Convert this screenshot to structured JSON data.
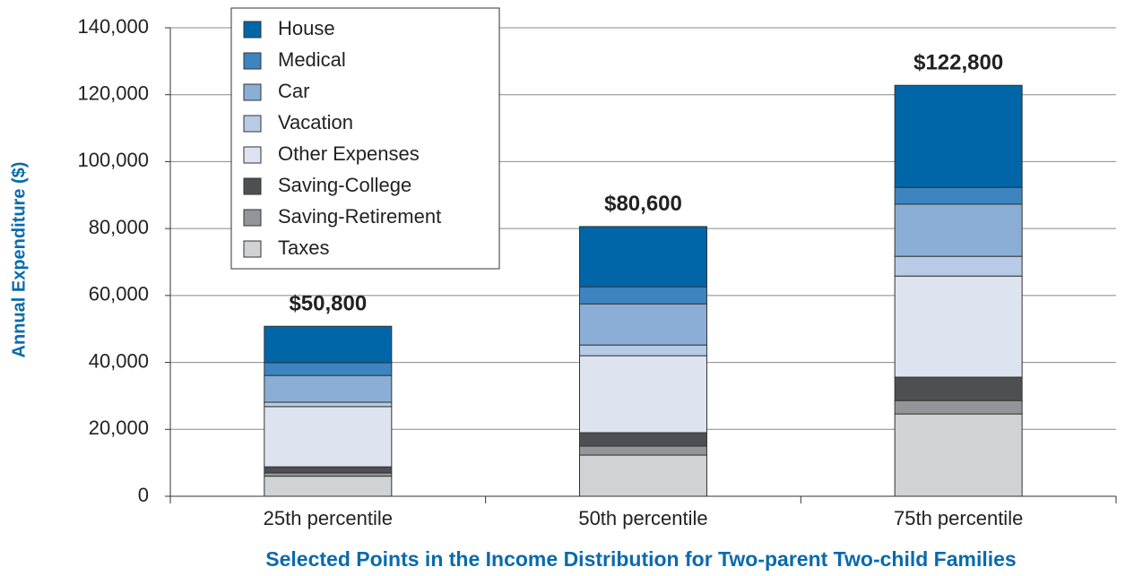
{
  "chart_data": {
    "type": "stacked_bar",
    "xlabel": "Selected Points in the Income Distribution for Two-parent Two-child Families",
    "ylabel": "Annual Expenditure ($)",
    "categories": [
      "25th percentile",
      "50th percentile",
      "75th percentile"
    ],
    "series": [
      {
        "name": "Taxes",
        "color": "#d1d2d4",
        "values": [
          6000,
          12300,
          24600
        ]
      },
      {
        "name": "Saving-Retirement",
        "color": "#939598",
        "values": [
          1000,
          2700,
          4000
        ]
      },
      {
        "name": "Saving-College",
        "color": "#4d4f52",
        "values": [
          1800,
          4000,
          7000
        ]
      },
      {
        "name": "Other Expenses",
        "color": "#dde4f0",
        "values": [
          18000,
          23000,
          30200
        ]
      },
      {
        "name": "Vacation",
        "color": "#b8cbe6",
        "values": [
          1300,
          3200,
          5900
        ]
      },
      {
        "name": "Car",
        "color": "#8aaed6",
        "values": [
          8000,
          12300,
          15600
        ]
      },
      {
        "name": "Medical",
        "color": "#3d85c0",
        "values": [
          3800,
          5100,
          5000
        ]
      },
      {
        "name": "House",
        "color": "#0066a8",
        "values": [
          10900,
          18000,
          30500
        ]
      }
    ],
    "totals": [
      50800,
      80600,
      122800
    ],
    "total_labels": [
      "$50,800",
      "$80,600",
      "$122,800"
    ],
    "ylim": [
      0,
      140000
    ],
    "yticks": [
      0,
      {
        "value": 20000,
        "label": "20,000"
      },
      {
        "value": 40000,
        "label": "40,000"
      },
      {
        "value": 60000,
        "label": "60,000"
      },
      {
        "value": 80000,
        "label": "80,000"
      },
      {
        "value": 100000,
        "label": "100,000"
      },
      {
        "value": 120000,
        "label": "120,000"
      },
      {
        "value": 140000,
        "label": "140,000"
      }
    ],
    "grid": true,
    "legend": "upper left"
  }
}
